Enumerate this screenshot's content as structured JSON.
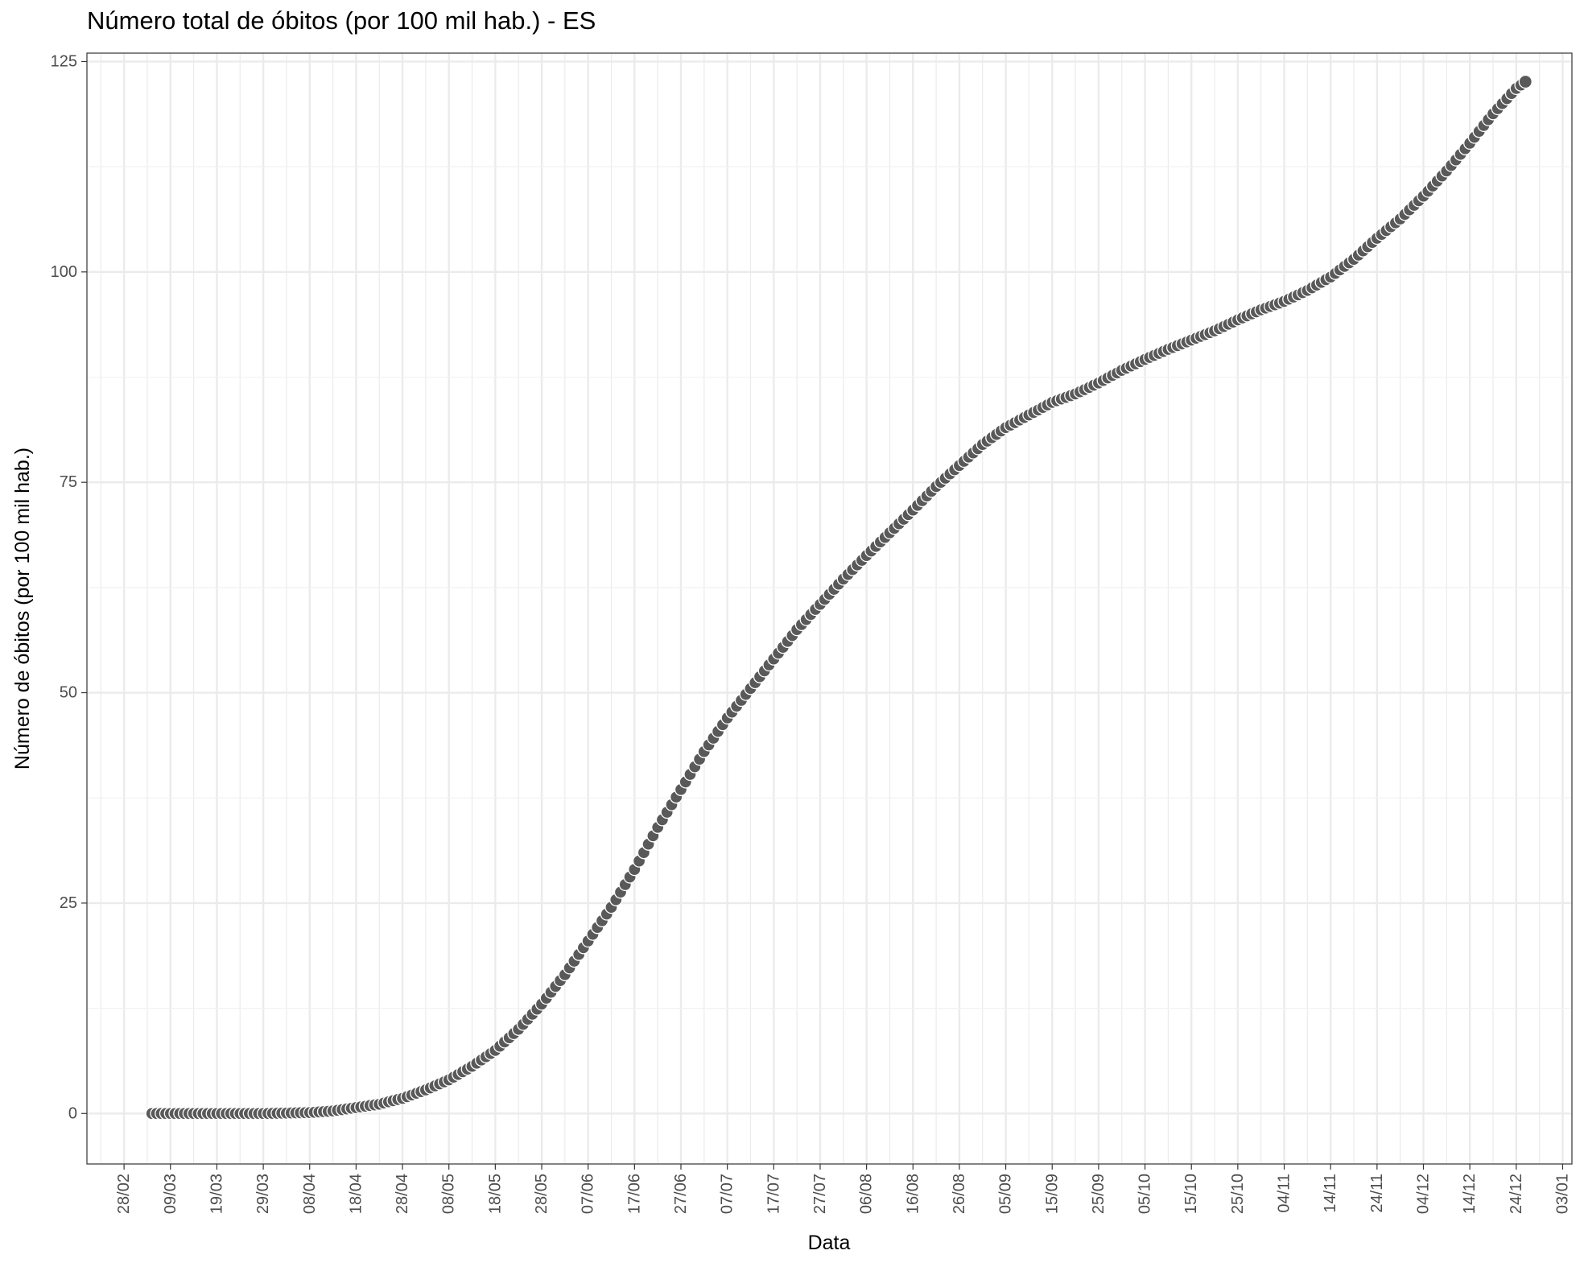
{
  "chart_data": {
    "type": "scatter",
    "title": "Número total de óbitos (por 100 mil hab.) - ES",
    "xlabel": "Data",
    "ylabel": "Número de óbitos (por 100 mil hab.)",
    "ylim": [
      -6,
      126
    ],
    "xlim": [
      "2020-02-20",
      "2021-01-05"
    ],
    "grid": true,
    "legend": "none",
    "point_color": "#595959",
    "x_tick_labels": [
      "28/02",
      "09/03",
      "19/03",
      "29/03",
      "08/04",
      "18/04",
      "28/04",
      "08/05",
      "18/05",
      "28/05",
      "07/06",
      "17/06",
      "27/06",
      "07/07",
      "17/07",
      "27/07",
      "06/08",
      "16/08",
      "26/08",
      "05/09",
      "15/09",
      "25/09",
      "05/10",
      "15/10",
      "25/10",
      "04/11",
      "14/11",
      "24/11",
      "04/12",
      "14/12",
      "24/12",
      "03/01"
    ],
    "x_ticks": [
      "2020-02-28",
      "2020-03-09",
      "2020-03-19",
      "2020-03-29",
      "2020-04-08",
      "2020-04-18",
      "2020-04-28",
      "2020-05-08",
      "2020-05-18",
      "2020-05-28",
      "2020-06-07",
      "2020-06-17",
      "2020-06-27",
      "2020-07-07",
      "2020-07-17",
      "2020-07-27",
      "2020-08-06",
      "2020-08-16",
      "2020-08-26",
      "2020-09-05",
      "2020-09-15",
      "2020-09-25",
      "2020-10-05",
      "2020-10-15",
      "2020-10-25",
      "2020-11-04",
      "2020-11-14",
      "2020-11-24",
      "2020-12-04",
      "2020-12-14",
      "2020-12-24",
      "2021-01-03"
    ],
    "y_ticks": [
      0,
      25,
      50,
      75,
      100,
      125
    ],
    "y_tick_labels": [
      "0",
      "25",
      "50",
      "75",
      "100",
      "125"
    ],
    "series": [
      {
        "points": [
          [
            "2020-03-05",
            0.0
          ],
          [
            "2020-03-09",
            0.0
          ],
          [
            "2020-03-19",
            0.0
          ],
          [
            "2020-03-29",
            0.0
          ],
          [
            "2020-04-08",
            0.1
          ],
          [
            "2020-04-13",
            0.3
          ],
          [
            "2020-04-18",
            0.7
          ],
          [
            "2020-04-23",
            1.1
          ],
          [
            "2020-04-28",
            1.8
          ],
          [
            "2020-05-03",
            2.8
          ],
          [
            "2020-05-08",
            4.0
          ],
          [
            "2020-05-13",
            5.6
          ],
          [
            "2020-05-18",
            7.5
          ],
          [
            "2020-05-23",
            10.0
          ],
          [
            "2020-05-28",
            13.0
          ],
          [
            "2020-06-02",
            16.5
          ],
          [
            "2020-06-07",
            20.5
          ],
          [
            "2020-06-12",
            24.5
          ],
          [
            "2020-06-17",
            29.0
          ],
          [
            "2020-06-22",
            34.0
          ],
          [
            "2020-06-27",
            38.5
          ],
          [
            "2020-07-02",
            43.0
          ],
          [
            "2020-07-07",
            47.0
          ],
          [
            "2020-07-12",
            50.5
          ],
          [
            "2020-07-17",
            54.0
          ],
          [
            "2020-07-22",
            57.5
          ],
          [
            "2020-07-27",
            60.5
          ],
          [
            "2020-08-01",
            63.5
          ],
          [
            "2020-08-06",
            66.3
          ],
          [
            "2020-08-11",
            69.0
          ],
          [
            "2020-08-16",
            71.7
          ],
          [
            "2020-08-21",
            74.5
          ],
          [
            "2020-08-26",
            77.0
          ],
          [
            "2020-08-31",
            79.5
          ],
          [
            "2020-09-05",
            81.5
          ],
          [
            "2020-09-10",
            83.0
          ],
          [
            "2020-09-15",
            84.5
          ],
          [
            "2020-09-20",
            85.5
          ],
          [
            "2020-09-25",
            86.8
          ],
          [
            "2020-09-30",
            88.3
          ],
          [
            "2020-10-05",
            89.6
          ],
          [
            "2020-10-10",
            90.8
          ],
          [
            "2020-10-15",
            91.9
          ],
          [
            "2020-10-20",
            93.0
          ],
          [
            "2020-10-25",
            94.3
          ],
          [
            "2020-10-30",
            95.5
          ],
          [
            "2020-11-04",
            96.5
          ],
          [
            "2020-11-09",
            97.8
          ],
          [
            "2020-11-14",
            99.4
          ],
          [
            "2020-11-19",
            101.5
          ],
          [
            "2020-11-24",
            104.0
          ],
          [
            "2020-11-29",
            106.3
          ],
          [
            "2020-12-04",
            109.0
          ],
          [
            "2020-12-09",
            112.0
          ],
          [
            "2020-12-14",
            115.3
          ],
          [
            "2020-12-19",
            118.8
          ],
          [
            "2020-12-24",
            121.8
          ],
          [
            "2020-12-26",
            122.6
          ]
        ]
      }
    ]
  }
}
